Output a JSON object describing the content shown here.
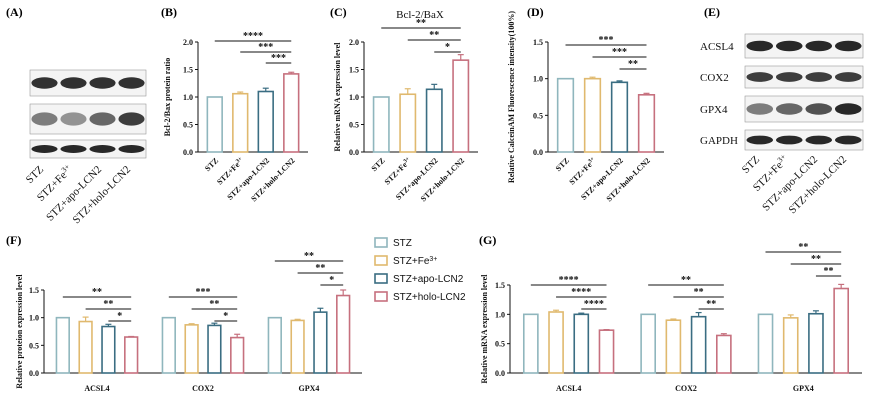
{
  "colors": {
    "STZ": "#8fb6bd",
    "STZ+Fe3+": "#e0b96e",
    "STZ+apo-LCN2": "#3a6d82",
    "STZ+holo-LCN2": "#c6707e",
    "blot": "#1c1c1c"
  },
  "groups": [
    "STZ",
    "STZ+Fe3+",
    "STZ+apo-LCN2",
    "STZ+holo-LCN2"
  ],
  "legend": {
    "items": [
      {
        "label": "STZ",
        "sup": "",
        "key": "STZ"
      },
      {
        "label": "STZ+Fe",
        "sup": "3+",
        "key": "STZ+Fe3+"
      },
      {
        "label": "STZ+apo-LCN2",
        "sup": "",
        "key": "STZ+apo-LCN2"
      },
      {
        "label": "STZ+holo-LCN2",
        "sup": "",
        "key": "STZ+holo-LCN2"
      }
    ]
  },
  "panel_a": {
    "label": "(A)",
    "lane_labels": [
      {
        "text": "STZ",
        "sup": ""
      },
      {
        "text": "STZ+Fe",
        "sup": "3+"
      },
      {
        "text": "STZ+apo-LCN2",
        "sup": ""
      },
      {
        "text": "STZ+holo-LCN2",
        "sup": ""
      }
    ]
  },
  "panel_e": {
    "label": "(E)",
    "blots": [
      "ACSL4",
      "COX2",
      "GPX4",
      "GAPDH"
    ],
    "lane_labels": [
      {
        "text": "STZ",
        "sup": ""
      },
      {
        "text": "STZ+Fe",
        "sup": "3+"
      },
      {
        "text": "STZ+apo-LCN2",
        "sup": ""
      },
      {
        "text": "STZ+holo-LCN2",
        "sup": ""
      }
    ]
  },
  "chart_data": [
    {
      "id": "B",
      "label": "(B)",
      "type": "bar",
      "title": "",
      "categories": [
        "STZ",
        "STZ+Fe3+",
        "STZ+apo-LCN2",
        "STZ+holo-LCN2"
      ],
      "tick_labels": [
        {
          "text": "STZ",
          "sup": ""
        },
        {
          "text": "STZ+Fe",
          "sup": "3+"
        },
        {
          "text": "STZ+apo-LCN2",
          "sup": ""
        },
        {
          "text": "STZ+holo-LCN2",
          "sup": ""
        }
      ],
      "values": [
        1.0,
        1.06,
        1.1,
        1.42
      ],
      "errors": [
        0.0,
        0.03,
        0.06,
        0.03
      ],
      "ylabel": "Bcl-2/Bax protein ratio",
      "xlabel": "",
      "ylim": [
        0,
        2.0
      ],
      "yticks": [
        "0.0",
        "0.5",
        "1.0",
        "1.5",
        "2.0"
      ],
      "significance": [
        {
          "from": 0,
          "to": 3,
          "label": "****"
        },
        {
          "from": 1,
          "to": 3,
          "label": "***"
        },
        {
          "from": 2,
          "to": 3,
          "label": "***"
        }
      ]
    },
    {
      "id": "C",
      "label": "(C)",
      "type": "bar",
      "title": "Bcl-2/BaX",
      "categories": [
        "STZ",
        "STZ+Fe3+",
        "STZ+apo-LCN2",
        "STZ+holo-LCN2"
      ],
      "tick_labels": [
        {
          "text": "STZ",
          "sup": ""
        },
        {
          "text": "STZ+Fe",
          "sup": "3+"
        },
        {
          "text": "STZ+apo-LCN2",
          "sup": ""
        },
        {
          "text": "STZ+holo-LCN2",
          "sup": ""
        }
      ],
      "values": [
        1.0,
        1.05,
        1.14,
        1.67
      ],
      "errors": [
        0.0,
        0.1,
        0.09,
        0.1
      ],
      "ylabel": "Relative mRNA expression level",
      "xlabel": "",
      "ylim": [
        0,
        2.0
      ],
      "yticks": [
        "0.0",
        "0.5",
        "1.0",
        "1.5",
        "2.0"
      ],
      "significance": [
        {
          "from": 0,
          "to": 3,
          "label": "**"
        },
        {
          "from": 1,
          "to": 3,
          "label": "**"
        },
        {
          "from": 2,
          "to": 3,
          "label": "*"
        }
      ]
    },
    {
      "id": "D",
      "label": "(D)",
      "type": "bar",
      "title": "",
      "categories": [
        "STZ",
        "STZ+Fe3+",
        "STZ+apo-LCN2",
        "STZ+holo-LCN2"
      ],
      "tick_labels": [
        {
          "text": "STZ",
          "sup": ""
        },
        {
          "text": "STZ+Fe",
          "sup": "3+"
        },
        {
          "text": "STZ+apo-LCN2",
          "sup": ""
        },
        {
          "text": "STZ+holo-LCN2",
          "sup": ""
        }
      ],
      "values": [
        1.0,
        1.0,
        0.95,
        0.78
      ],
      "errors": [
        0.0,
        0.02,
        0.02,
        0.02
      ],
      "ylabel": "Relative CalceinAM Fluorescence intensity(100%)",
      "xlabel": "",
      "ylim": [
        0,
        1.5
      ],
      "yticks": [
        "0.0",
        "0.5",
        "1.0",
        "1.5"
      ],
      "significance": [
        {
          "from": 0,
          "to": 3,
          "label": "***"
        },
        {
          "from": 1,
          "to": 3,
          "label": "***"
        },
        {
          "from": 2,
          "to": 3,
          "label": "**"
        }
      ]
    },
    {
      "id": "F",
      "label": "(F)",
      "type": "bar",
      "title": "",
      "categories": [
        "ACSL4",
        "COX2",
        "GPX4"
      ],
      "series": [
        {
          "name": "STZ",
          "values": [
            1.0,
            1.0,
            1.0
          ],
          "errors": [
            0.0,
            0.0,
            0.0
          ]
        },
        {
          "name": "STZ+Fe3+",
          "values": [
            0.93,
            0.87,
            0.95
          ],
          "errors": [
            0.08,
            0.02,
            0.02
          ]
        },
        {
          "name": "STZ+apo-LCN2",
          "values": [
            0.84,
            0.86,
            1.1
          ],
          "errors": [
            0.04,
            0.04,
            0.07
          ]
        },
        {
          "name": "STZ+holo-LCN2",
          "values": [
            0.65,
            0.64,
            1.4
          ],
          "errors": [
            0.01,
            0.06,
            0.1
          ]
        }
      ],
      "ylabel": "Relative proteion expression level",
      "xlabel": "",
      "ylim": [
        0,
        1.5
      ],
      "yticks": [
        "0.0",
        "0.5",
        "1.0",
        "1.5"
      ],
      "significance": [
        {
          "group": 0,
          "from": 0,
          "to": 3,
          "label": "**"
        },
        {
          "group": 0,
          "from": 1,
          "to": 3,
          "label": "**"
        },
        {
          "group": 0,
          "from": 2,
          "to": 3,
          "label": "*"
        },
        {
          "group": 1,
          "from": 0,
          "to": 3,
          "label": "***"
        },
        {
          "group": 1,
          "from": 1,
          "to": 3,
          "label": "**"
        },
        {
          "group": 1,
          "from": 2,
          "to": 3,
          "label": "*"
        },
        {
          "group": 2,
          "from": 0,
          "to": 3,
          "label": "**"
        },
        {
          "group": 2,
          "from": 1,
          "to": 3,
          "label": "**"
        },
        {
          "group": 2,
          "from": 2,
          "to": 3,
          "label": "*"
        }
      ]
    },
    {
      "id": "G",
      "label": "(G)",
      "type": "bar",
      "title": "",
      "categories": [
        "ACSL4",
        "COX2",
        "GPX4"
      ],
      "series": [
        {
          "name": "STZ",
          "values": [
            1.0,
            1.0,
            1.0
          ],
          "errors": [
            0.0,
            0.0,
            0.0
          ]
        },
        {
          "name": "STZ+Fe3+",
          "values": [
            1.04,
            0.9,
            0.94
          ],
          "errors": [
            0.03,
            0.02,
            0.05
          ]
        },
        {
          "name": "STZ+apo-LCN2",
          "values": [
            1.0,
            0.96,
            1.01
          ],
          "errors": [
            0.02,
            0.07,
            0.05
          ]
        },
        {
          "name": "STZ+holo-LCN2",
          "values": [
            0.73,
            0.64,
            1.44
          ],
          "errors": [
            0.01,
            0.03,
            0.07
          ]
        }
      ],
      "ylabel": "Relative mRNA expression level",
      "xlabel": "",
      "ylim": [
        0,
        1.5
      ],
      "yticks": [
        "0.0",
        "0.5",
        "1.0",
        "1.5"
      ],
      "significance": [
        {
          "group": 0,
          "from": 0,
          "to": 3,
          "label": "****"
        },
        {
          "group": 0,
          "from": 1,
          "to": 3,
          "label": "****"
        },
        {
          "group": 0,
          "from": 2,
          "to": 3,
          "label": "****"
        },
        {
          "group": 1,
          "from": 0,
          "to": 3,
          "label": "**"
        },
        {
          "group": 1,
          "from": 1,
          "to": 3,
          "label": "**"
        },
        {
          "group": 1,
          "from": 2,
          "to": 3,
          "label": "**"
        },
        {
          "group": 2,
          "from": 0,
          "to": 3,
          "label": "**"
        },
        {
          "group": 2,
          "from": 1,
          "to": 3,
          "label": "**"
        },
        {
          "group": 2,
          "from": 2,
          "to": 3,
          "label": "**"
        }
      ]
    }
  ]
}
